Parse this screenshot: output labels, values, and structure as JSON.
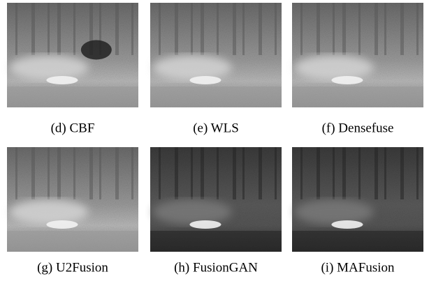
{
  "figure": {
    "panels": [
      {
        "caption": "(d) CBF"
      },
      {
        "caption": "(e) WLS"
      },
      {
        "caption": "(f) Densefuse"
      },
      {
        "caption": "(g) U2Fusion"
      },
      {
        "caption": "(h) FusionGAN"
      },
      {
        "caption": "(i) MAFusion"
      }
    ]
  }
}
